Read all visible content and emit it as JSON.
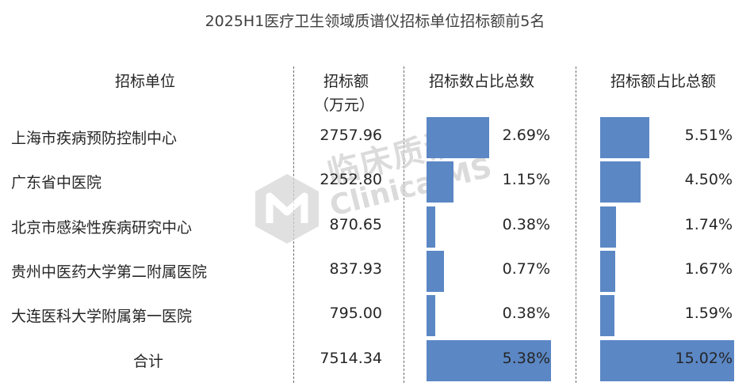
{
  "chart_data": {
    "type": "table",
    "title": "2025H1医疗卫生领域质谱仪招标单位招标额前5名",
    "columns": [
      "招标单位",
      "招标额",
      "（万元）",
      "招标数占比总数",
      "招标额占比总额"
    ],
    "rows": [
      {
        "name": "上海市疾病预防控制中心",
        "amount": "2757.96",
        "count_share_label": "2.69%",
        "count_share": 2.69,
        "amount_share_label": "5.51%",
        "amount_share": 5.51
      },
      {
        "name": "广东省中医院",
        "amount": "2252.80",
        "count_share_label": "1.15%",
        "count_share": 1.15,
        "amount_share_label": "4.50%",
        "amount_share": 4.5
      },
      {
        "name": "北京市感染性疾病研究中心",
        "amount": "870.65",
        "count_share_label": "0.38%",
        "count_share": 0.38,
        "amount_share_label": "1.74%",
        "amount_share": 1.74
      },
      {
        "name": "贵州中医药大学第二附属医院",
        "amount": "837.93",
        "count_share_label": "0.77%",
        "count_share": 0.77,
        "amount_share_label": "1.67%",
        "amount_share": 1.67
      },
      {
        "name": "大连医科大学附属第一医院",
        "amount": "795.00",
        "count_share_label": "0.38%",
        "count_share": 0.38,
        "amount_share_label": "1.59%",
        "amount_share": 1.59
      }
    ],
    "total": {
      "name": "合计",
      "amount": "7514.34",
      "count_share_label": "5.38%",
      "count_share": 5.38,
      "amount_share_label": "15.02%",
      "amount_share": 15.02
    },
    "bar_color": "#5b87c5"
  },
  "watermark": {
    "cn": "临床质谱网",
    "en": "ClinicalMS"
  }
}
